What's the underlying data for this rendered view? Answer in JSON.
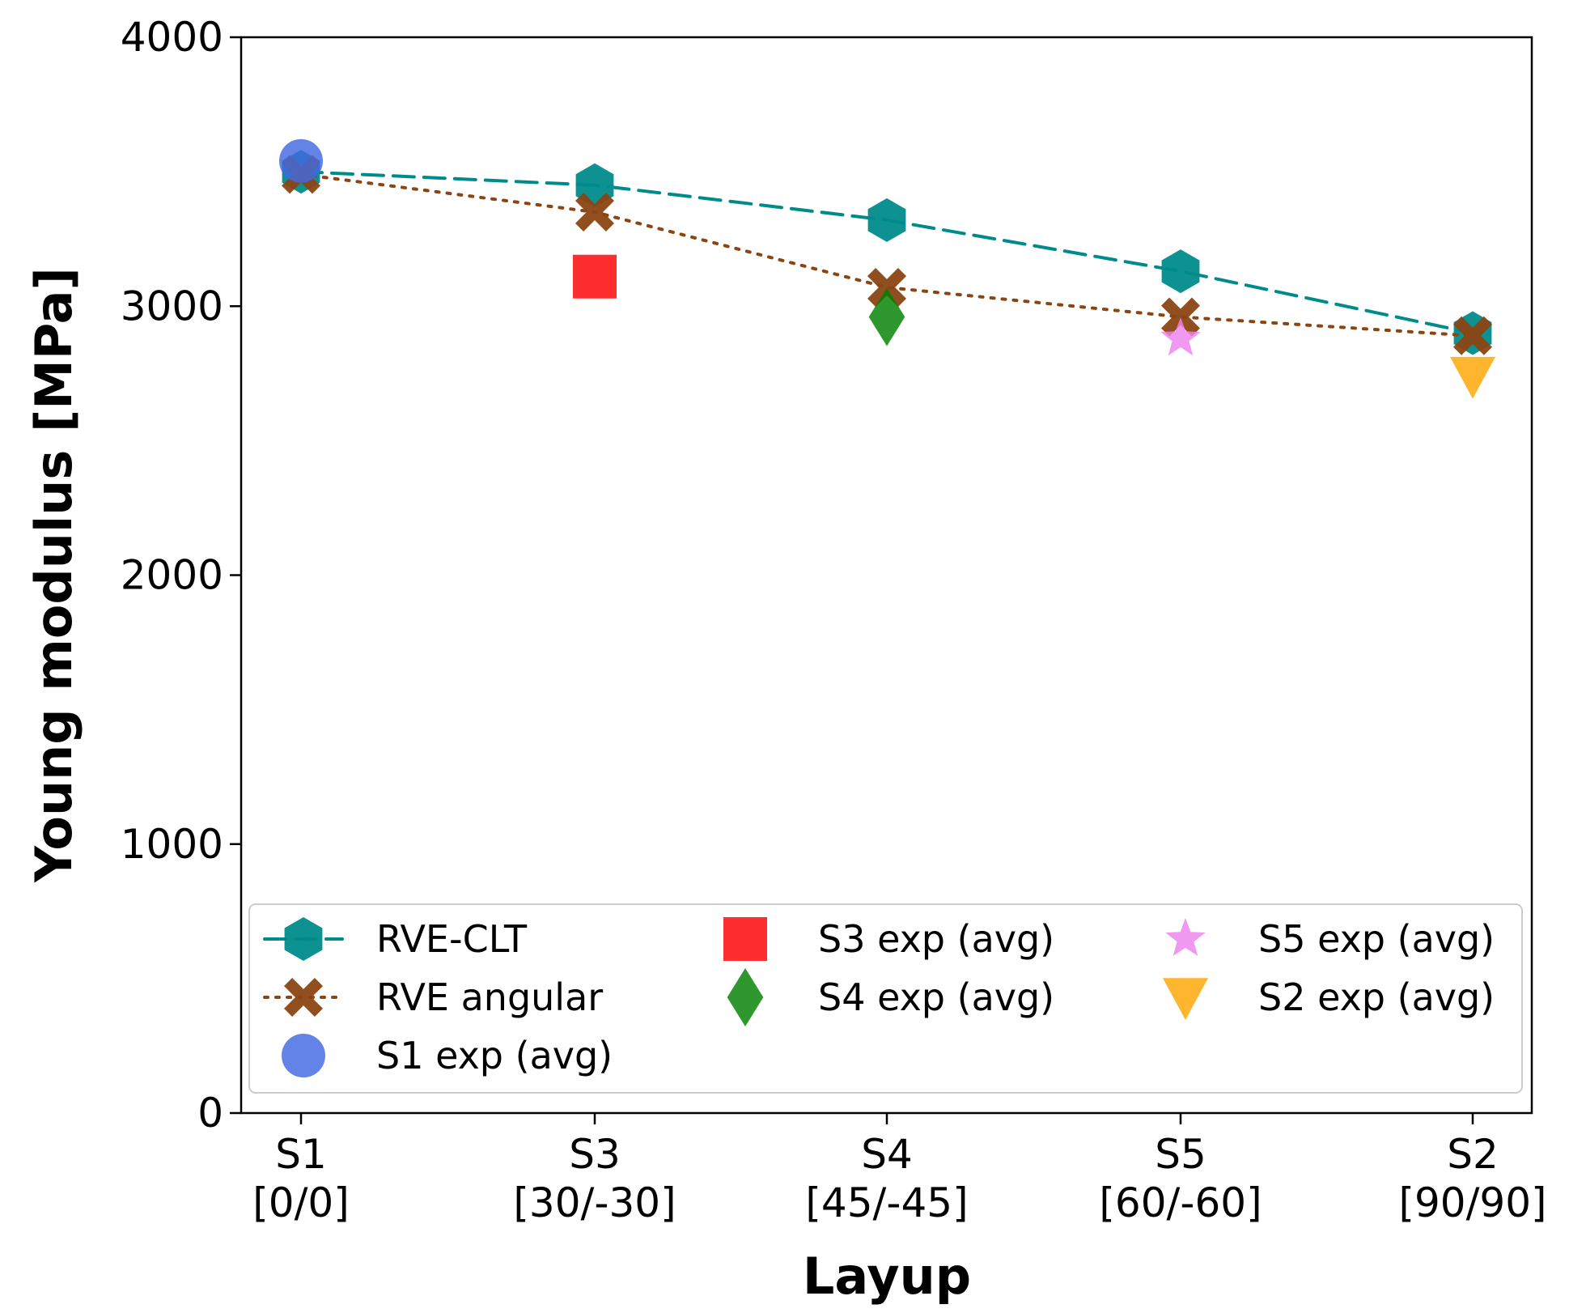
{
  "chart_data": {
    "type": "line",
    "title": "",
    "xlabel": "Layup",
    "ylabel": "Young modulus [MPa]",
    "ylim": [
      0,
      4000
    ],
    "yticks": [
      0,
      1000,
      2000,
      3000,
      4000
    ],
    "categories": [
      {
        "code": "S1",
        "angle": "[0/0]"
      },
      {
        "code": "S3",
        "angle": "[30/-30]"
      },
      {
        "code": "S4",
        "angle": "[45/-45]"
      },
      {
        "code": "S5",
        "angle": "[60/-60]"
      },
      {
        "code": "S2",
        "angle": "[90/90]"
      }
    ],
    "grid": false,
    "legend_position": "lower-center",
    "series": [
      {
        "name": "RVE-CLT",
        "kind": "line",
        "linestyle": "dashed",
        "marker": "hexagon",
        "color": "#008b8b",
        "values": [
          3500,
          3450,
          3320,
          3130,
          2900
        ]
      },
      {
        "name": "RVE angular",
        "kind": "line",
        "linestyle": "dotted",
        "marker": "x",
        "color": "#8b4513",
        "values": [
          3490,
          3350,
          3070,
          2960,
          2890
        ]
      }
    ],
    "points": [
      {
        "name": "S1 exp (avg)",
        "category": 0,
        "value": 3540,
        "marker": "circle",
        "color": "#4169e1"
      },
      {
        "name": "S3 exp (avg)",
        "category": 1,
        "value": 3110,
        "marker": "square",
        "color": "#ff0000"
      },
      {
        "name": "S4 exp (avg)",
        "category": 2,
        "value": 2960,
        "marker": "diamond",
        "color": "#008000"
      },
      {
        "name": "S5 exp (avg)",
        "category": 3,
        "value": 2880,
        "marker": "star",
        "color": "#ee82ee"
      },
      {
        "name": "S2 exp (avg)",
        "category": 4,
        "value": 2740,
        "marker": "triangle-down",
        "color": "#ffa500"
      }
    ],
    "legend_entries": [
      [
        "RVE-CLT",
        "RVE angular",
        "S1 exp (avg)"
      ],
      [
        "S3 exp (avg)",
        "S4 exp (avg)"
      ],
      [
        "S5 exp (avg)",
        "S2 exp (avg)"
      ]
    ]
  }
}
